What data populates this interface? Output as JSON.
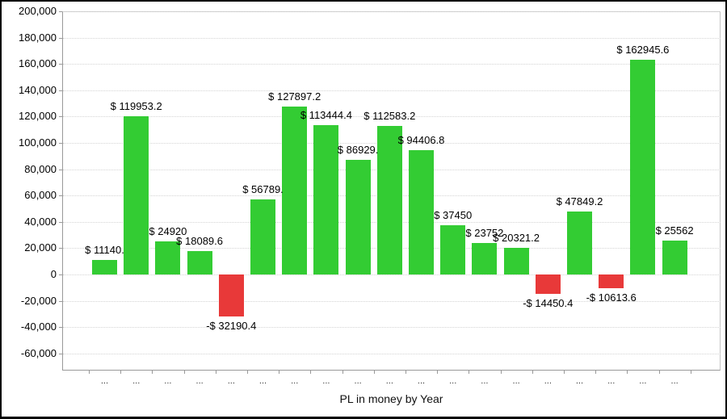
{
  "chart_data": {
    "type": "bar",
    "title": "PL in money by Year",
    "xlabel": "PL in money by Year",
    "ylabel": "",
    "ylim": [
      -73000,
      200000
    ],
    "grid": "dotted-horizontal",
    "legend": "none",
    "categories": [
      "...",
      "...",
      "...",
      "...",
      "...",
      "...",
      "...",
      "...",
      "...",
      "...",
      "...",
      "...",
      "...",
      "...",
      "...",
      "...",
      "...",
      "...",
      "..."
    ],
    "values": [
      11140,
      119953.2,
      24920,
      18089.6,
      -32190.4,
      56789,
      127897.2,
      113444.4,
      86929,
      112583.2,
      94406.8,
      37450,
      23752,
      20321.2,
      -14450.4,
      47849.2,
      -10613.6,
      162945.6,
      25562
    ],
    "labels": [
      "$ 11140.",
      "$ 119953.2",
      "$ 24920",
      "$ 18089.6",
      "-$ 32190.4",
      "$ 56789.",
      "$ 127897.2",
      "$ 113444.4",
      "$ 86929.",
      "$ 112583.2",
      "$ 94406.8",
      "$ 37450",
      "$ 23752",
      "$ 20321.2",
      "-$ 14450.4",
      "$ 47849.2",
      "-$ 10613.6",
      "$ 162945.6",
      "$ 25562"
    ],
    "y_ticks": [
      "200,000",
      "180,000",
      "160,000",
      "140,000",
      "120,000",
      "100,000",
      "80,000",
      "60,000",
      "40,000",
      "20,000",
      "0",
      "-20,000",
      "-40,000",
      "-60,000"
    ],
    "colors": {
      "positive": "#33CC33",
      "negative": "#E83939",
      "gridline": "#d4d4d4",
      "axis": "#999999"
    }
  }
}
